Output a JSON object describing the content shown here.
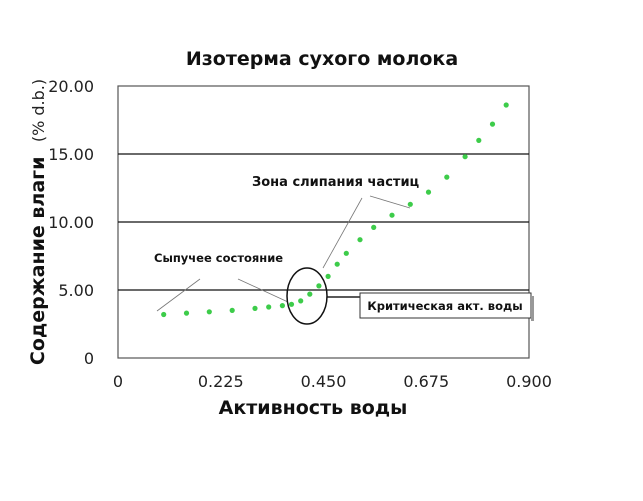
{
  "chart_data": {
    "type": "scatter",
    "title": "Изотерма сухого молока",
    "xlabel": "Активность воды",
    "ylabel": "Содержание влаги",
    "ylabel_unit": "(% d.b.)",
    "xlim": [
      0,
      0.9
    ],
    "ylim": [
      0,
      20
    ],
    "x_ticks": [
      "0",
      "0.225",
      "0.450",
      "0.675",
      "0.900"
    ],
    "y_ticks": [
      "0",
      "5.00",
      "10.00",
      "15.00",
      "20.00"
    ],
    "grid": "horizontal",
    "series": [
      {
        "color": "#3dcc4a",
        "x": [
          0.1,
          0.15,
          0.2,
          0.25,
          0.3,
          0.33,
          0.36,
          0.38,
          0.4,
          0.42,
          0.44,
          0.46,
          0.48,
          0.5,
          0.53,
          0.56,
          0.6,
          0.64,
          0.68,
          0.72,
          0.76,
          0.79,
          0.82,
          0.85
        ],
        "y": [
          3.2,
          3.3,
          3.4,
          3.5,
          3.65,
          3.75,
          3.85,
          3.95,
          4.2,
          4.7,
          5.3,
          6.0,
          6.9,
          7.7,
          8.7,
          9.6,
          10.5,
          11.3,
          12.2,
          13.3,
          14.8,
          16.0,
          17.2,
          18.6
        ]
      }
    ],
    "annotations": [
      {
        "text": "Сыпучее состояние"
      },
      {
        "text": "Зона слипания частиц"
      },
      {
        "text": "Критическая акт. воды"
      }
    ]
  }
}
